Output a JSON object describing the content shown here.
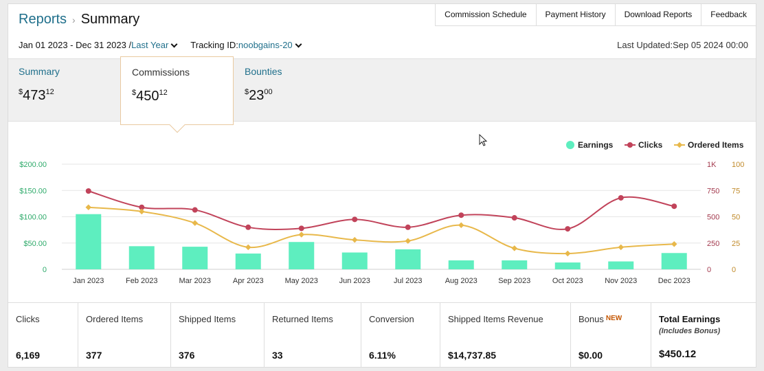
{
  "breadcrumb": {
    "parent": "Reports",
    "current": "Summary"
  },
  "topnav": [
    "Commission Schedule",
    "Payment History",
    "Download Reports",
    "Feedback"
  ],
  "filters": {
    "date_range": "Jan 01 2023 - Dec 31 2023 /",
    "period": "Last Year",
    "tracking_label": "Tracking ID:",
    "tracking_id": "noobgains-20"
  },
  "last_updated": "Last Updated:Sep 05 2024 00:00",
  "tabs": {
    "summary": {
      "label": "Summary",
      "currency": "$",
      "whole": "473",
      "cents": "12"
    },
    "commissions": {
      "label": "Commissions",
      "currency": "$",
      "whole": "450",
      "cents": "12"
    },
    "bounties": {
      "label": "Bounties",
      "currency": "$",
      "whole": "23",
      "cents": "00"
    }
  },
  "chart_data": {
    "type": "bar",
    "categories": [
      "Jan 2023",
      "Feb 2023",
      "Mar 2023",
      "Apr 2023",
      "May 2023",
      "Jun 2023",
      "Jul 2023",
      "Aug 2023",
      "Sep 2023",
      "Oct 2023",
      "Nov 2023",
      "Dec 2023"
    ],
    "legend": [
      "Earnings",
      "Clicks",
      "Ordered Items"
    ],
    "legend_position": "top-right",
    "y_left_ticks": [
      "0",
      "$50.00",
      "$100.00",
      "$150.00",
      "$200.00"
    ],
    "y_clicks_ticks": [
      "0",
      "250",
      "500",
      "750",
      "1K"
    ],
    "y_items_ticks": [
      "0",
      "25",
      "50",
      "75",
      "100"
    ],
    "ylim_left": [
      0,
      200
    ],
    "ylim_clicks": [
      0,
      1000
    ],
    "ylim_items": [
      0,
      100
    ],
    "grid": true,
    "series": [
      {
        "name": "Earnings",
        "type": "bar",
        "axis": "left",
        "color": "#5eeebf",
        "values": [
          105,
          44,
          43,
          30,
          52,
          32,
          38,
          17,
          17,
          13,
          15,
          31
        ]
      },
      {
        "name": "Clicks",
        "type": "line",
        "axis": "clicks",
        "color": "#c1435a",
        "values": [
          745,
          590,
          565,
          400,
          390,
          475,
          400,
          515,
          490,
          385,
          680,
          600
        ]
      },
      {
        "name": "Ordered Items",
        "type": "line",
        "axis": "items",
        "color": "#e8b84a",
        "values": [
          59,
          55,
          44,
          21,
          33,
          28,
          27,
          42,
          20,
          15,
          21,
          24
        ]
      }
    ]
  },
  "stats": [
    {
      "label": "Clicks",
      "value": "6,169"
    },
    {
      "label": "Ordered Items",
      "value": "377"
    },
    {
      "label": "Shipped Items",
      "value": "376"
    },
    {
      "label": "Returned Items",
      "value": "33"
    },
    {
      "label": "Conversion",
      "value": "6.11%"
    },
    {
      "label": "Shipped Items Revenue",
      "value": "$14,737.85"
    },
    {
      "label": "Bonus",
      "badge": "NEW",
      "value": "$0.00"
    },
    {
      "label": "Total Earnings",
      "sub": "(Includes Bonus)",
      "value": "$450.12"
    }
  ],
  "colors": {
    "link": "#1f6f8b",
    "earnings": "#5eeebf",
    "clicks": "#c1435a",
    "items": "#e8b84a",
    "axis_left": "#2eaa6a",
    "axis_clicks": "#a33a4e",
    "axis_items": "#c08a2a"
  }
}
